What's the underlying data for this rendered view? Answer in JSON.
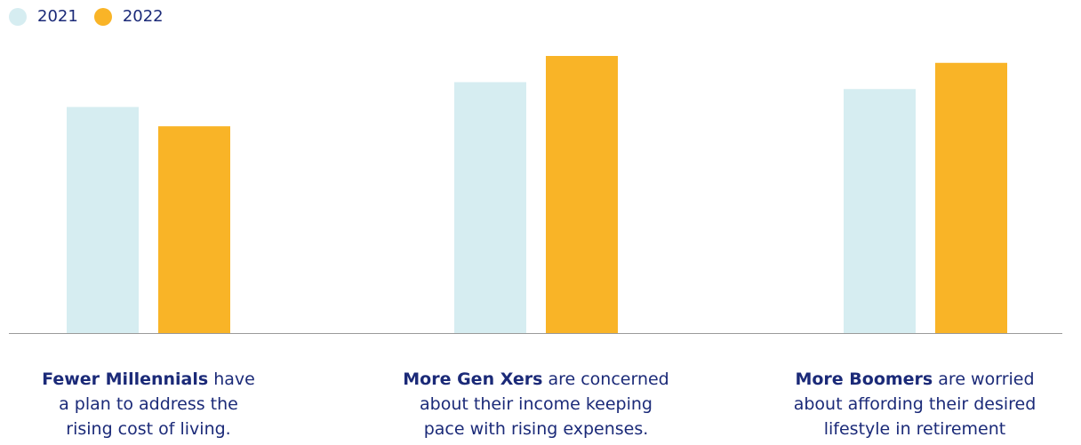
{
  "legend": {
    "items": [
      {
        "label": "2021",
        "color": "#d6edf1"
      },
      {
        "label": "2022",
        "color": "#f9b427"
      }
    ]
  },
  "chart_data": {
    "type": "bar",
    "categories": [
      "Fewer Millennials have a plan to address the rising cost of living.",
      "More Gen Xers are concerned about their income keeping pace with rising expenses.",
      "More Boomers are worried about affording their desired lifestyle in retirement"
    ],
    "series": [
      {
        "name": "2021",
        "values": [
          82,
          91,
          88.5
        ]
      },
      {
        "name": "2022",
        "values": [
          75,
          100.5,
          98
        ]
      }
    ],
    "ylim": [
      0,
      100
    ],
    "grid": false,
    "legend_position": "top-left",
    "title": "",
    "xlabel": "",
    "ylabel": ""
  },
  "captions": [
    {
      "bold": "Fewer Millennials",
      "rest_line1": " have",
      "line2": "a plan to address the",
      "line3": "rising cost of living."
    },
    {
      "bold": "More Gen Xers",
      "rest_line1": " are concerned",
      "line2": "about their income keeping",
      "line3": "pace with rising expenses."
    },
    {
      "bold": "More Boomers",
      "rest_line1": " are worried",
      "line2": "about affording their desired",
      "line3": "lifestyle in retirement"
    }
  ]
}
